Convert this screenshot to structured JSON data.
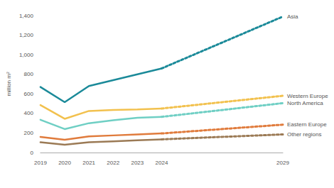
{
  "chart_data": {
    "type": "line",
    "y_label": "million m²",
    "x": [
      2019,
      2020,
      2021,
      2022,
      2023,
      2024,
      2029
    ],
    "xlim": [
      2019,
      2029
    ],
    "xticks": [
      2019,
      2020,
      2021,
      2022,
      2023,
      2024,
      2029
    ],
    "ylim": [
      0,
      1400
    ],
    "yticks": [
      0,
      200,
      400,
      600,
      800,
      {
        "value": 1000,
        "label": "1,000"
      },
      {
        "value": 1200,
        "label": "1,200"
      },
      {
        "value": 1400,
        "label": "1,400"
      }
    ],
    "grid": false,
    "series": [
      {
        "name": "Asia",
        "color": "#1b8a99",
        "line_style": "solid",
        "values": [
          670,
          515,
          680,
          740,
          800,
          860,
          null
        ]
      },
      {
        "name": "Asia",
        "color": "#1b8a99",
        "line_style": "dotted",
        "values": [
          null,
          null,
          null,
          null,
          null,
          860,
          1390
        ]
      },
      {
        "name": "Western Europe",
        "color": "#f2c14e",
        "line_style": "solid",
        "values": [
          485,
          345,
          425,
          435,
          440,
          450,
          null
        ]
      },
      {
        "name": "Western Europe",
        "color": "#f2c14e",
        "line_style": "dotted",
        "values": [
          null,
          null,
          null,
          null,
          null,
          450,
          580
        ]
      },
      {
        "name": "North America",
        "color": "#6fcfc4",
        "line_style": "solid",
        "values": [
          335,
          240,
          300,
          330,
          355,
          365,
          null
        ]
      },
      {
        "name": "North America",
        "color": "#6fcfc4",
        "line_style": "dotted",
        "values": [
          null,
          null,
          null,
          null,
          null,
          365,
          505
        ]
      },
      {
        "name": "Eastern Europe",
        "color": "#e07b3c",
        "line_style": "solid",
        "values": [
          160,
          130,
          165,
          175,
          185,
          195,
          null
        ]
      },
      {
        "name": "Eastern Europe",
        "color": "#e07b3c",
        "line_style": "dotted",
        "values": [
          null,
          null,
          null,
          null,
          null,
          195,
          285
        ]
      },
      {
        "name": "Other regions",
        "color": "#9b7a55",
        "line_style": "solid",
        "values": [
          105,
          80,
          105,
          115,
          125,
          135,
          null
        ]
      },
      {
        "name": "Other regions",
        "color": "#9b7a55",
        "line_style": "dotted",
        "values": [
          null,
          null,
          null,
          null,
          null,
          135,
          185
        ]
      }
    ]
  }
}
